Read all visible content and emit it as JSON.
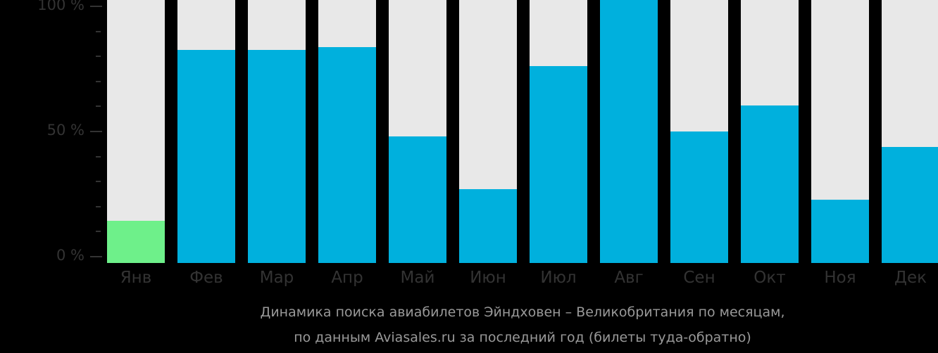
{
  "chart_data": {
    "type": "bar",
    "title": "Динамика поиска авиабилетов Эйндховен – Великобритания по месяцам,",
    "subtitle": "по данным Aviasales.ru за последний год (билеты туда-обратно)",
    "xlabel": "",
    "ylabel": "",
    "ylim": [
      0,
      100
    ],
    "grid": false,
    "legend": null,
    "yticks": [
      "100 %",
      "50 %",
      "0 %"
    ],
    "categories": [
      "Янв",
      "Фев",
      "Мар",
      "Апр",
      "Май",
      "Июн",
      "Июл",
      "Авг",
      "Сен",
      "Окт",
      "Ноя",
      "Дек"
    ],
    "values": [
      16,
      81,
      81,
      82,
      48,
      28,
      75,
      100,
      50,
      60,
      24,
      44
    ],
    "highlight_index": 0,
    "colors": {
      "background": "#000000",
      "track": "#e8e8e8",
      "bar": "#00b0dd",
      "highlight": "#6ef08a",
      "axis_text": "#333333",
      "caption_text": "#999999"
    }
  }
}
